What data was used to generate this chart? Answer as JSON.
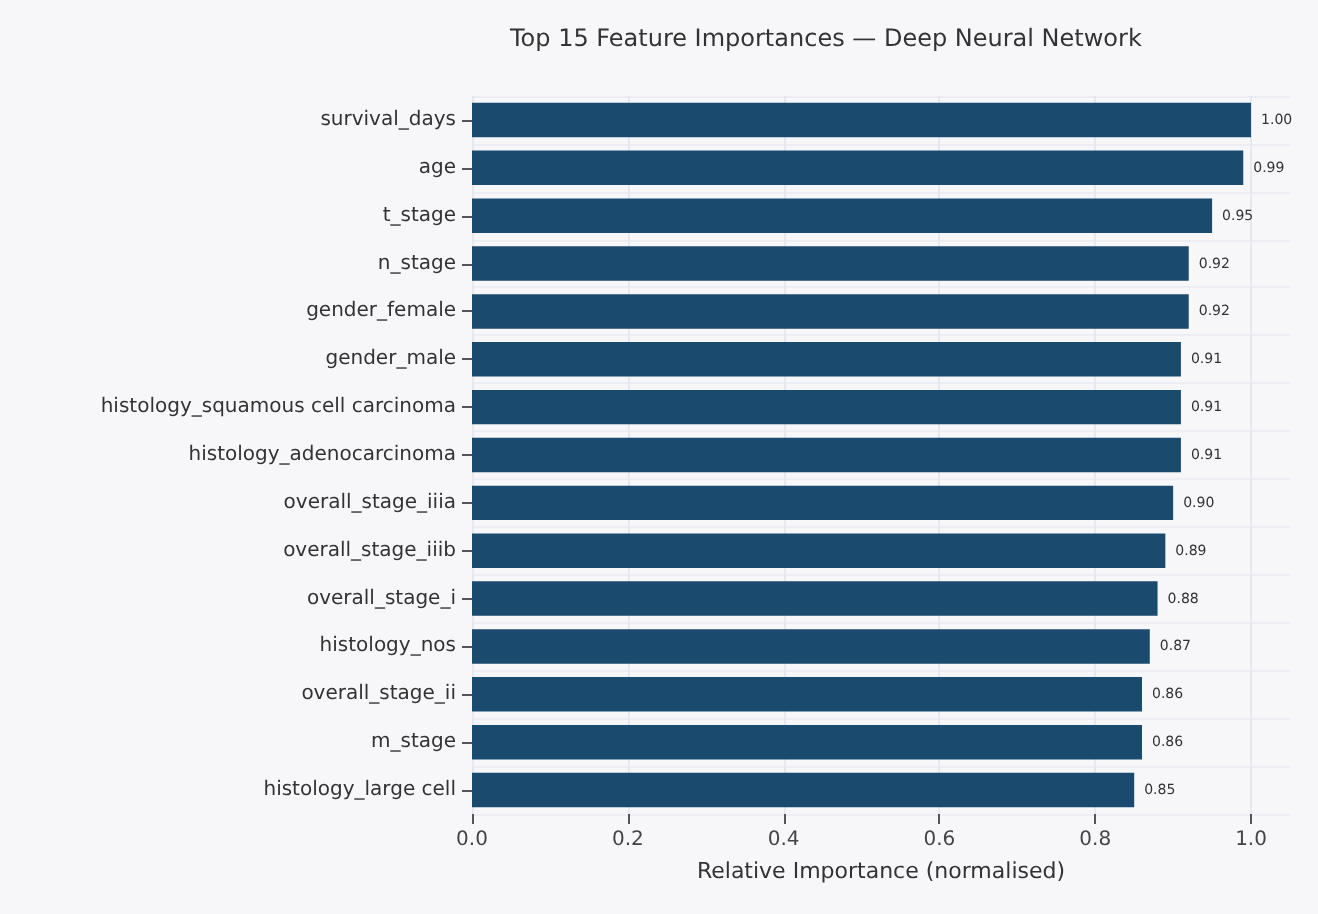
{
  "chart_data": {
    "type": "bar",
    "orientation": "horizontal",
    "title": "Top 15 Feature Importances — Deep Neural Network",
    "xlabel": "Relative Importance (normalised)",
    "categories": [
      "survival_days",
      "age",
      "t_stage",
      "n_stage",
      "gender_female",
      "gender_male",
      "histology_squamous cell carcinoma",
      "histology_adenocarcinoma",
      "overall_stage_iiia",
      "overall_stage_iiib",
      "overall_stage_i",
      "histology_nos",
      "overall_stage_ii",
      "m_stage",
      "histology_large cell"
    ],
    "values": [
      1.0,
      0.99,
      0.95,
      0.92,
      0.92,
      0.91,
      0.91,
      0.91,
      0.9,
      0.89,
      0.88,
      0.87,
      0.86,
      0.86,
      0.85
    ],
    "value_labels": [
      "1.00",
      "0.99",
      "0.95",
      "0.92",
      "0.92",
      "0.91",
      "0.91",
      "0.91",
      "0.90",
      "0.89",
      "0.88",
      "0.87",
      "0.86",
      "0.86",
      "0.85"
    ],
    "color": "#1a4a6e",
    "xlim": [
      0,
      1.05
    ],
    "xticks": [
      {
        "value": 0,
        "label": "0.0"
      },
      {
        "value": 0.2,
        "label": "0.2"
      },
      {
        "value": 0.4,
        "label": "0.4"
      },
      {
        "value": 0.6,
        "label": "0.6"
      },
      {
        "value": 0.8,
        "label": "0.8"
      },
      {
        "value": 1,
        "label": "1.0"
      }
    ],
    "grid": true
  }
}
